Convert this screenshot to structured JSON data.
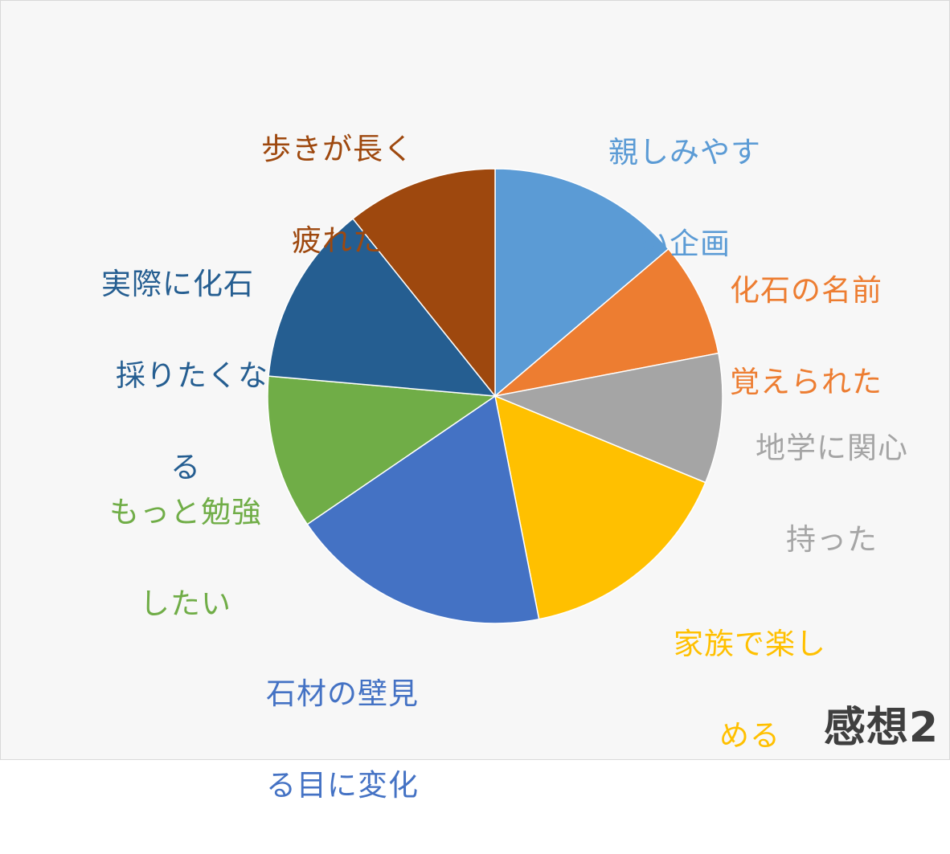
{
  "chart_data": {
    "type": "pie",
    "title": "",
    "caption": "感想2",
    "slices": [
      {
        "label": "親しみやすい企画",
        "value": 14.5,
        "color": "#5b9bd5"
      },
      {
        "label": "化石の名前覚えられた",
        "value": 8.6,
        "color": "#ed7d31"
      },
      {
        "label": "地学に関心持った",
        "value": 9.7,
        "color": "#a5a5a5"
      },
      {
        "label": "家族で楽しめる",
        "value": 16.5,
        "color": "#ffc000"
      },
      {
        "label": "石材の壁見る目に変化",
        "value": 19.5,
        "color": "#4472c4"
      },
      {
        "label": "もっと勉強したい",
        "value": 11.5,
        "color": "#70ad47"
      },
      {
        "label": "実際に化石採りたくなる",
        "value": 13.5,
        "color": "#255e91"
      },
      {
        "label": "歩きが長く疲れた",
        "value": 11.3,
        "color": "#9e480e"
      }
    ],
    "labels_display": [
      {
        "line1": "親しみやす",
        "line2": "い企画"
      },
      {
        "line1": "化石の名前",
        "line2": "覚えられた"
      },
      {
        "line1": "地学に関心",
        "line2": "持った"
      },
      {
        "line1": "家族で楽し",
        "line2": "める"
      },
      {
        "line1": "石材の壁見",
        "line2": "る目に変化"
      },
      {
        "line1": "もっと勉強",
        "line2": "したい"
      },
      {
        "line1": "実際に化石",
        "line2": "採りたくな",
        "line3": "る"
      },
      {
        "line1": "歩きが長く",
        "line2": "疲れた"
      }
    ]
  }
}
